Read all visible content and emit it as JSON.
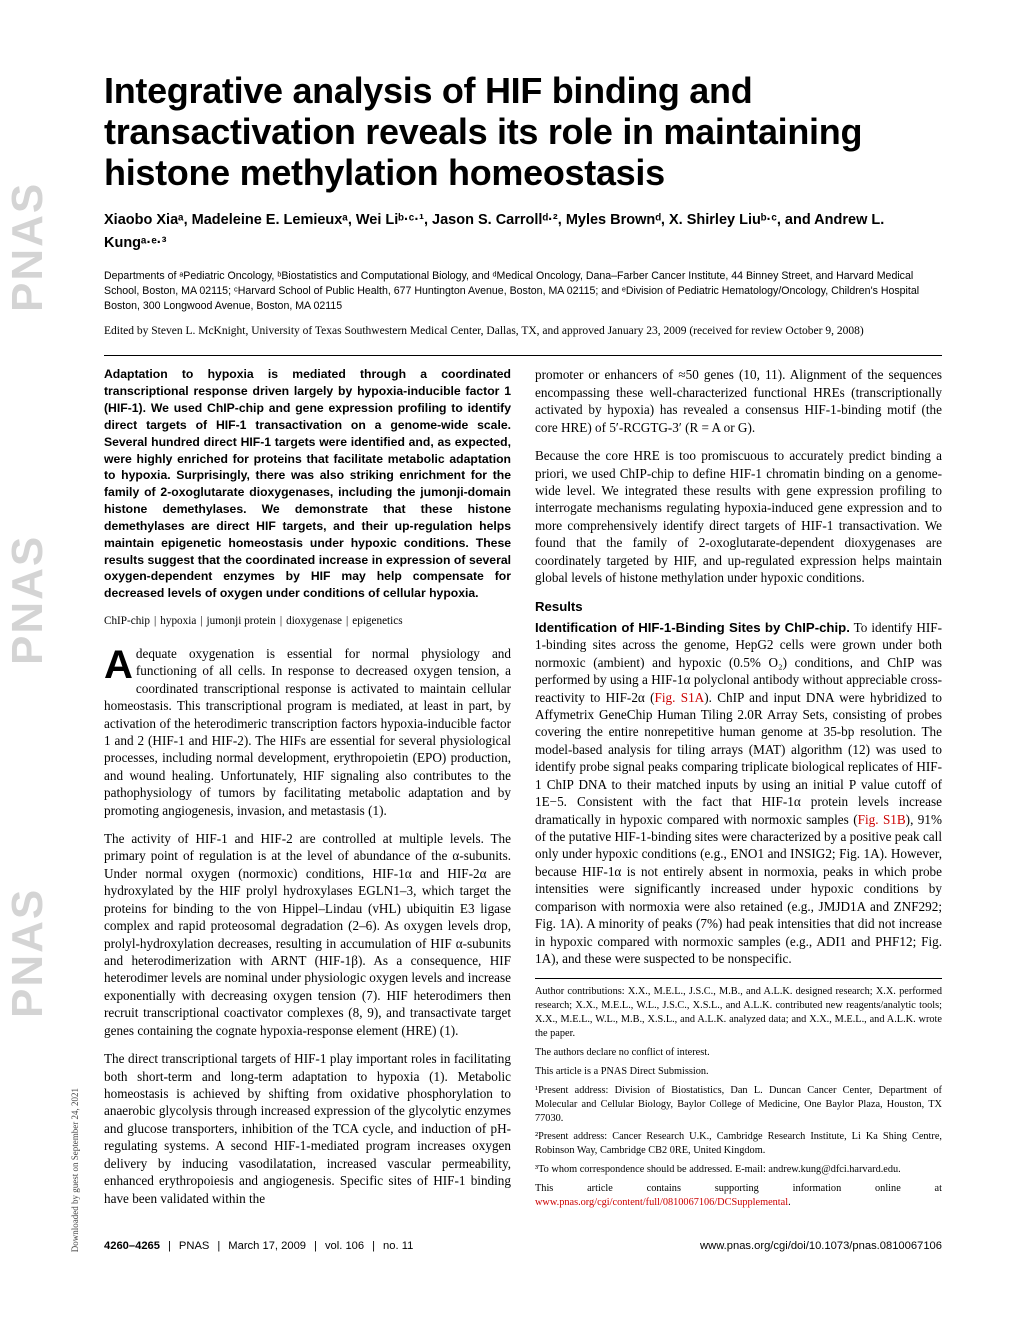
{
  "sidebar": {
    "text1": "PNAS",
    "text2": "PNAS",
    "text3": "PNAS"
  },
  "download_note": "Downloaded by guest on September 24, 2021",
  "title": "Integrative analysis of HIF binding and transactivation reveals its role in maintaining histone methylation homeostasis",
  "authors_html": "Xiaobo Xiaᵃ, Madeleine E. Lemieuxᵃ, Wei Liᵇ·ᶜ·¹, Jason S. Carrollᵈ·², Myles Brownᵈ, X. Shirley Liuᵇ·ᶜ, and Andrew L. Kungᵃ·ᵉ·³",
  "affiliations": "Departments of ᵃPediatric Oncology, ᵇBiostatistics and Computational Biology, and ᵈMedical Oncology, Dana–Farber Cancer Institute, 44 Binney Street, and Harvard Medical School, Boston, MA 02115; ᶜHarvard School of Public Health, 677 Huntington Avenue, Boston, MA 02115; and ᵉDivision of Pediatric Hematology/Oncology, Children's Hospital Boston, 300 Longwood Avenue, Boston, MA 02115",
  "edited": "Edited by Steven L. McKnight, University of Texas Southwestern Medical Center, Dallas, TX, and approved January 23, 2009 (received for review October 9, 2008)",
  "abstract": "Adaptation to hypoxia is mediated through a coordinated transcriptional response driven largely by hypoxia-inducible factor 1 (HIF-1). We used ChIP-chip and gene expression profiling to identify direct targets of HIF-1 transactivation on a genome-wide scale. Several hundred direct HIF-1 targets were identified and, as expected, were highly enriched for proteins that facilitate metabolic adaptation to hypoxia. Surprisingly, there was also striking enrichment for the family of 2-oxoglutarate dioxygenases, including the jumonji-domain histone demethylases. We demonstrate that these histone demethylases are direct HIF targets, and their up-regulation helps maintain epigenetic homeostasis under hypoxic conditions. These results suggest that the coordinated increase in expression of several oxygen-dependent enzymes by HIF may help compensate for decreased levels of oxygen under conditions of cellular hypoxia.",
  "keywords": [
    "ChIP-chip",
    "hypoxia",
    "jumonji protein",
    "dioxygenase",
    "epigenetics"
  ],
  "body": {
    "p1": "dequate oxygenation is essential for normal physiology and functioning of all cells. In response to decreased oxygen tension, a coordinated transcriptional response is activated to maintain cellular homeostasis. This transcriptional program is mediated, at least in part, by activation of the heterodimeric transcription factors hypoxia-inducible factor 1 and 2 (HIF-1 and HIF-2). The HIFs are essential for several physiological processes, including normal development, erythropoietin (EPO) production, and wound healing. Unfortunately, HIF signaling also contributes to the pathophysiology of tumors by facilitating metabolic adaptation and by promoting angiogenesis, invasion, and metastasis (1).",
    "p2": "The activity of HIF-1 and HIF-2 are controlled at multiple levels. The primary point of regulation is at the level of abundance of the α-subunits. Under normal oxygen (normoxic) conditions, HIF-1α and HIF-2α are hydroxylated by the HIF prolyl hydroxylases EGLN1–3, which target the proteins for binding to the von Hippel–Lindau (vHL) ubiquitin E3 ligase complex and rapid proteosomal degradation (2–6). As oxygen levels drop, prolyl-hydroxylation decreases, resulting in accumulation of HIF α-subunits and heterodimerization with ARNT (HIF-1β). As a consequence, HIF heterodimer levels are nominal under physiologic oxygen levels and increase exponentially with decreasing oxygen tension (7). HIF heterodimers then recruit transcriptional coactivator complexes (8, 9), and transactivate target genes containing the cognate hypoxia-response element (HRE) (1).",
    "p3": "The direct transcriptional targets of HIF-1 play important roles in facilitating both short-term and long-term adaptation to hypoxia (1). Metabolic homeostasis is achieved by shifting from oxidative phosphorylation to anaerobic glycolysis through increased expression of the glycolytic enzymes and glucose transporters, inhibition of the TCA cycle, and induction of pH-regulating systems. A second HIF-1-mediated program increases oxygen delivery by inducing vasodilatation, increased vascular permeability, enhanced erythropoiesis and angiogenesis. Specific sites of HIF-1 binding have been validated within the",
    "p4": "promoter or enhancers of ≈50 genes (10, 11). Alignment of the sequences encompassing these well-characterized functional HREs (transcriptionally activated by hypoxia) has revealed a consensus HIF-1-binding motif (the core HRE) of 5′-RCGTG-3′ (R = A or G).",
    "p5": "Because the core HRE is too promiscuous to accurately predict binding a priori, we used ChIP-chip to define HIF-1 chromatin binding on a genome-wide level. We integrated these results with gene expression profiling to interrogate mechanisms regulating hypoxia-induced gene expression and to more comprehensively identify direct targets of HIF-1 transactivation. We found that the family of 2-oxoglutarate-dependent dioxygenases are coordinately targeted by HIF, and up-regulated expression helps maintain global levels of histone methylation under hypoxic conditions.",
    "results_head": "Results",
    "r1_runin": "Identification of HIF-1-Binding Sites by ChIP-chip.",
    "r1_pre": "To identify HIF-1-binding sites across the genome, HepG2 cells were grown under both normoxic (ambient) and hypoxic (0.5% O₂) conditions, and ChIP was performed by using a HIF-1α polyclonal antibody without appreciable cross-reactivity to HIF-2α (",
    "r1_link1": "Fig. S1A",
    "r1_mid": "). ChIP and input DNA were hybridized to Affymetrix GeneChip Human Tiling 2.0R Array Sets, consisting of probes covering the entire nonrepetitive human genome at 35-bp resolution. The model-based analysis for tiling arrays (MAT) algorithm (12) was used to identify probe signal peaks comparing triplicate biological replicates of HIF-1 ChIP DNA to their matched inputs by using an initial P value cutoff of 1E−5. Consistent with the fact that HIF-1α protein levels increase dramatically in hypoxic compared with normoxic samples (",
    "r1_link2": "Fig. S1B",
    "r1_post": "), 91% of the putative HIF-1-binding sites were characterized by a positive peak call only under hypoxic conditions (e.g., ENO1 and INSIG2; Fig. 1A). However, because HIF-1α is not entirely absent in normoxia, peaks in which probe intensities were significantly increased under hypoxic conditions by comparison with normoxia were also retained (e.g., JMJD1A and ZNF292; Fig. 1A). A minority of peaks (7%) had peak intensities that did not increase in hypoxic compared with normoxic samples (e.g., ADI1 and PHF12; Fig. 1A), and these were suspected to be nonspecific."
  },
  "footnotes": {
    "contrib": "Author contributions: X.X., M.E.L., J.S.C., M.B., and A.L.K. designed research; X.X. performed research; X.X., M.E.L., W.L., J.S.C., X.S.L., and A.L.K. contributed new reagents/analytic tools; X.X., M.E.L., W.L., M.B., X.S.L., and A.L.K. analyzed data; and X.X., M.E.L., and A.L.K. wrote the paper.",
    "coi": "The authors declare no conflict of interest.",
    "direct": "This article is a PNAS Direct Submission.",
    "addr1": "¹Present address: Division of Biostatistics, Dan L. Duncan Cancer Center, Department of Molecular and Cellular Biology, Baylor College of Medicine, One Baylor Plaza, Houston, TX 77030.",
    "addr2": "²Present address: Cancer Research U.K., Cambridge Research Institute, Li Ka Shing Centre, Robinson Way, Cambridge CB2 0RE, United Kingdom.",
    "corr": "³To whom correspondence should be addressed. E-mail: andrew.kung@dfci.harvard.edu.",
    "si_pre": "This article contains supporting information online at ",
    "si_link": "www.pnas.org/cgi/content/full/0810067106/DCSupplemental",
    "si_post": "."
  },
  "footer": {
    "pages": "4260–4265",
    "journal": "PNAS",
    "date": "March 17, 2009",
    "vol": "vol. 106",
    "no": "no. 11",
    "doi": "www.pnas.org/cgi/doi/10.1073/pnas.0810067106"
  }
}
